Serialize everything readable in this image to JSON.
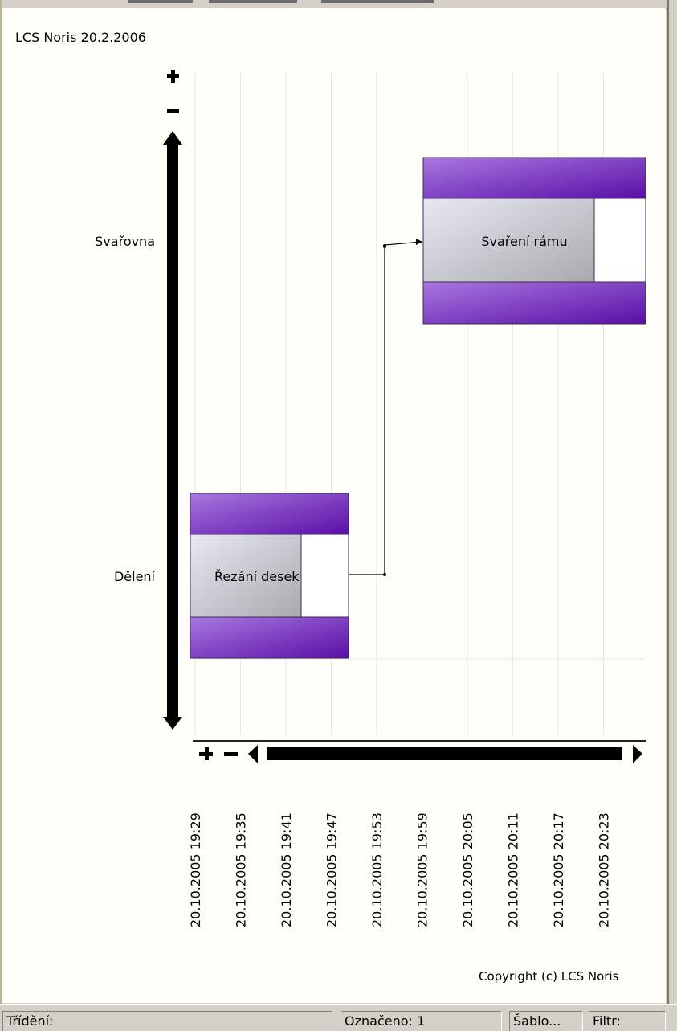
{
  "app": {
    "header_text": "LCS Noris 20.2.2006",
    "copyright": "Copyright (c) LCS Noris"
  },
  "gantt": {
    "resources": [
      "Svařovna",
      "Dělení"
    ],
    "tasks": [
      {
        "name": "Svaření rámu",
        "resource": "Svařovna",
        "start": "20.10.2005 19:57",
        "end": "20.10.2005 20:26",
        "progress": 0.75
      },
      {
        "name": "Řezání desek",
        "resource": "Dělení",
        "start": "20.10.2005 19:30",
        "end": "20.10.2005 19:51",
        "progress": 0.7
      }
    ],
    "dependency": {
      "from": "Řezání desek",
      "to": "Svaření rámu"
    },
    "time_ticks": [
      "20.10.2005 19:29",
      "20.10.2005 19:35",
      "20.10.2005 19:41",
      "20.10.2005 19:47",
      "20.10.2005 19:53",
      "20.10.2005 19:59",
      "20.10.2005 20:05",
      "20.10.2005 20:11",
      "20.10.2005 20:17",
      "20.10.2005 20:23"
    ],
    "controls": {
      "zoom_in_icon": "plus-icon",
      "zoom_out_icon": "minus-icon",
      "scroll_up_icon": "arrow-up-icon",
      "scroll_down_icon": "arrow-down-icon",
      "scroll_left_icon": "arrow-left-icon",
      "scroll_right_icon": "arrow-right-icon"
    },
    "colors": {
      "bar_purple_light": "#9b5fd6",
      "bar_purple_dark": "#5a0fa6",
      "bar_body": "#c8c8cc",
      "grid": "#e6e6e6"
    }
  },
  "statusbar": {
    "sort_label": "Třídění:",
    "selected_label": "Označeno: 1",
    "template_label": "Šablo...",
    "filter_label": "Filtr:"
  }
}
